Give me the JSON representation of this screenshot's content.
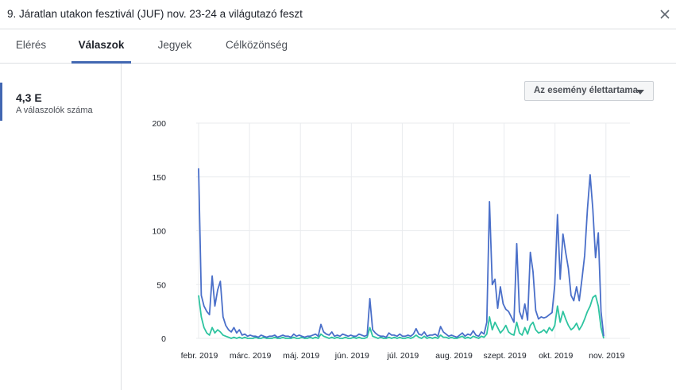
{
  "header": {
    "title": "9. Járatlan utakon fesztivál (JUF) nov. 23-24 a világutazó feszt",
    "close_icon": "close-icon"
  },
  "tabs": [
    {
      "label": "Elérés",
      "active": false
    },
    {
      "label": "Válaszok",
      "active": true
    },
    {
      "label": "Jegyek",
      "active": false
    },
    {
      "label": "Célközönség",
      "active": false
    }
  ],
  "sidebar": {
    "metric_value": "4,3 E",
    "metric_label": "A válaszolók száma"
  },
  "filter": {
    "label": "Az esemény élettartama",
    "caret_icon": "caret-down-icon"
  },
  "colors": {
    "accent": "#4267b2",
    "series_blue": "#4a6fc9",
    "series_green": "#2ec4a0",
    "grid": "#e9ebee"
  },
  "chart_data": {
    "type": "line",
    "ylim": [
      0,
      200
    ],
    "yticks": [
      "200",
      "150",
      "100",
      "50",
      "0"
    ],
    "xticks": [
      "febr. 2019",
      "márc. 2019",
      "máj. 2019",
      "jún. 2019",
      "júl. 2019",
      "aug. 2019",
      "szept. 2019",
      "okt. 2019",
      "nov. 2019"
    ],
    "grid": true,
    "series": [
      {
        "values": [
          158,
          40,
          30,
          25,
          22,
          58,
          30,
          45,
          53,
          20,
          12,
          8,
          6,
          10,
          5,
          8,
          3,
          4,
          2,
          3,
          2,
          2,
          1,
          3,
          2,
          1,
          2,
          2,
          3,
          1,
          2,
          3,
          2,
          2,
          1,
          4,
          2,
          3,
          2,
          1,
          2,
          2,
          3,
          4,
          2,
          13,
          6,
          4,
          3,
          6,
          2,
          3,
          2,
          4,
          3,
          2,
          3,
          2,
          2,
          4,
          3,
          2,
          3,
          37,
          8,
          5,
          3,
          2,
          2,
          1,
          5,
          3,
          3,
          2,
          4,
          2,
          2,
          3,
          2,
          4,
          9,
          4,
          3,
          6,
          2,
          3,
          3,
          4,
          2,
          11,
          6,
          4,
          2,
          3,
          2,
          1,
          3,
          5,
          2,
          4,
          3,
          7,
          3,
          2,
          6,
          4,
          15,
          127,
          50,
          55,
          28,
          48,
          32,
          27,
          25,
          20,
          15,
          88,
          25,
          18,
          32,
          17,
          80,
          62,
          26,
          18,
          20,
          19,
          20,
          22,
          24,
          50,
          115,
          55,
          97,
          80,
          65,
          40,
          35,
          48,
          35,
          55,
          77,
          120,
          152,
          120,
          75,
          98,
          25,
          2
        ]
      },
      {
        "values": [
          40,
          20,
          10,
          5,
          3,
          10,
          5,
          8,
          6,
          3,
          2,
          1,
          0,
          1,
          0,
          1,
          0,
          1,
          0,
          0,
          0,
          1,
          0,
          0,
          1,
          0,
          0,
          0,
          1,
          0,
          0,
          1,
          0,
          0,
          0,
          1,
          0,
          0,
          1,
          0,
          0,
          1,
          0,
          1,
          0,
          4,
          2,
          1,
          0,
          1,
          0,
          1,
          0,
          0,
          1,
          0,
          0,
          1,
          0,
          1,
          0,
          0,
          1,
          10,
          2,
          1,
          0,
          1,
          0,
          0,
          1,
          0,
          1,
          0,
          1,
          0,
          0,
          1,
          0,
          1,
          3,
          1,
          0,
          2,
          0,
          1,
          0,
          1,
          0,
          3,
          1,
          1,
          0,
          1,
          0,
          0,
          1,
          2,
          0,
          1,
          0,
          2,
          1,
          0,
          2,
          1,
          4,
          20,
          8,
          15,
          10,
          5,
          8,
          12,
          6,
          4,
          3,
          15,
          5,
          3,
          10,
          4,
          12,
          15,
          8,
          5,
          6,
          8,
          5,
          10,
          7,
          12,
          30,
          15,
          25,
          18,
          12,
          8,
          10,
          14,
          8,
          12,
          18,
          25,
          30,
          38,
          40,
          30,
          10,
          0
        ]
      }
    ]
  }
}
